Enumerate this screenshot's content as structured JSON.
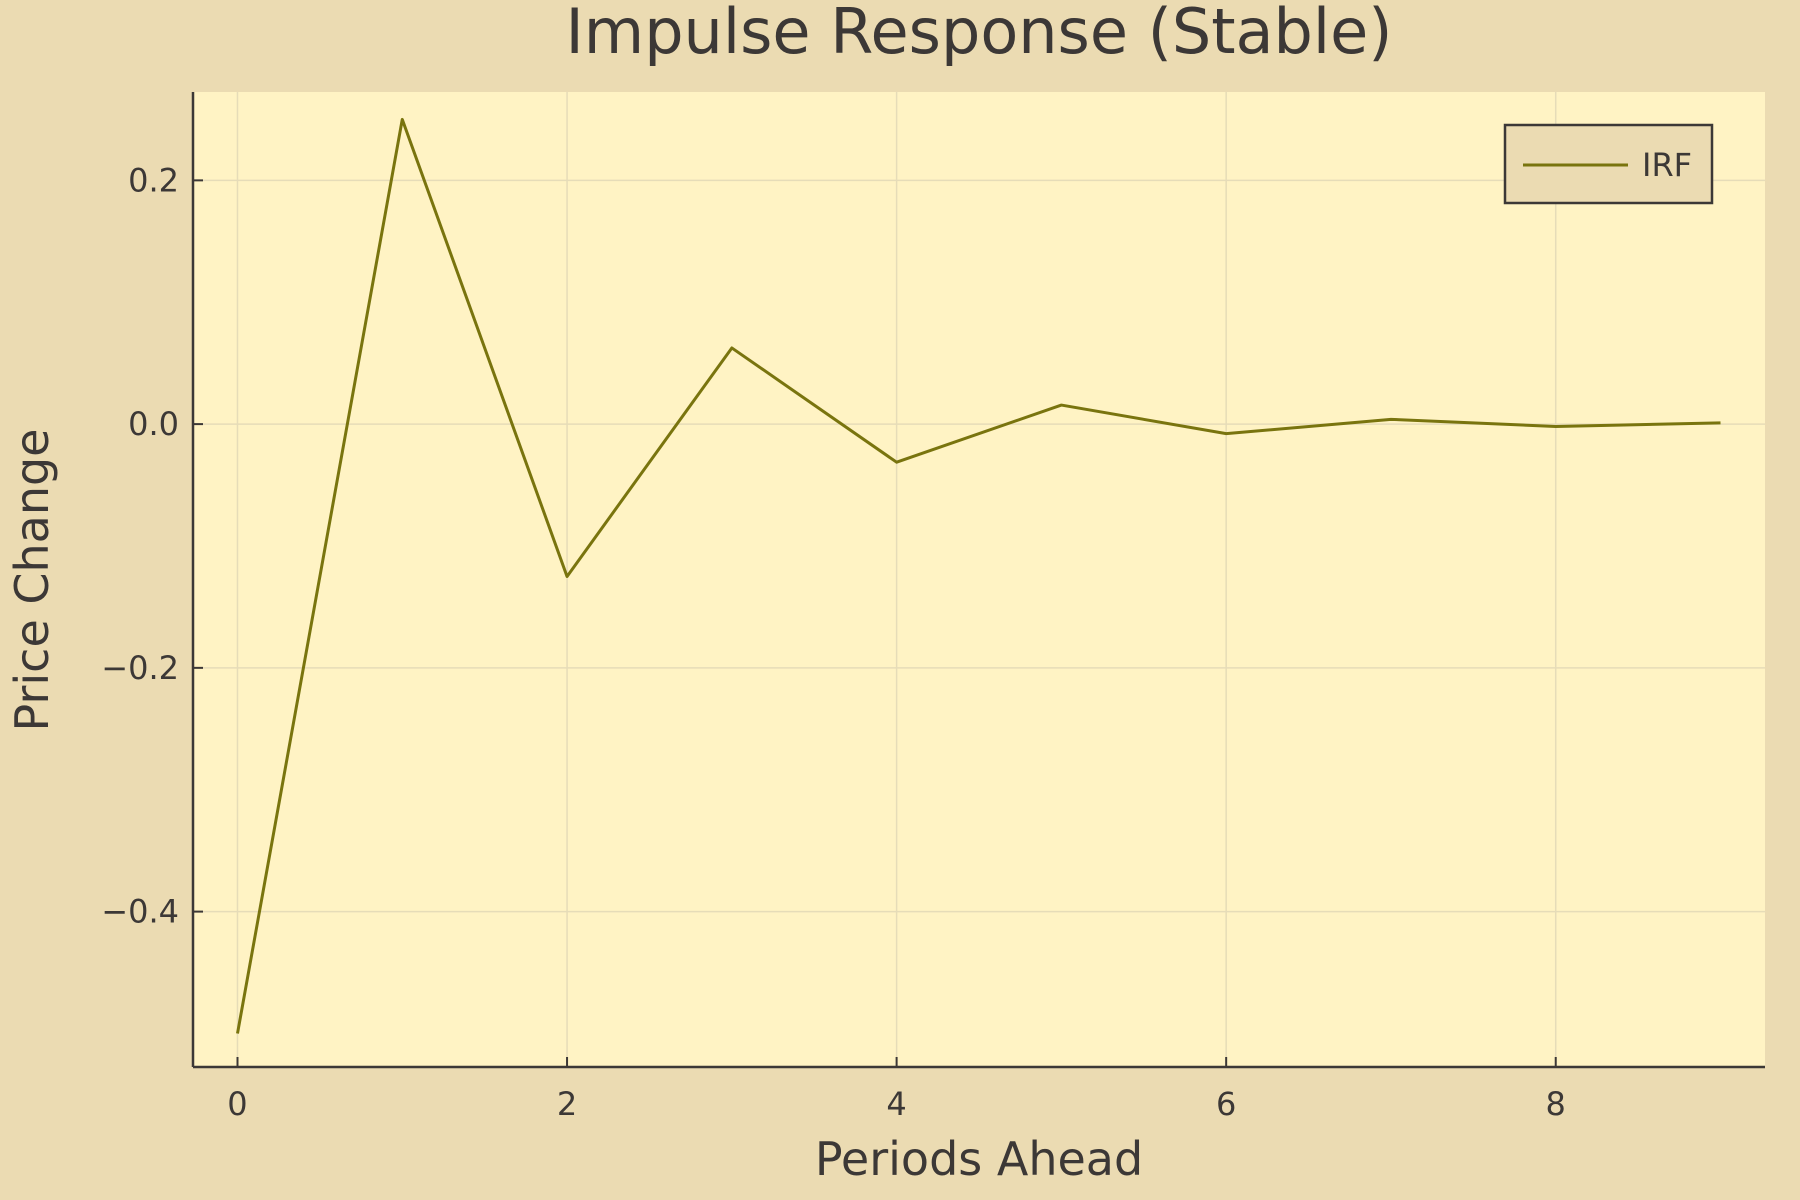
{
  "chart_data": {
    "type": "line",
    "title": "Impulse Response (Stable)",
    "xlabel": "Periods Ahead",
    "ylabel": "Price Change",
    "xlim": [
      -0.27,
      9.27
    ],
    "ylim": [
      -0.5275,
      0.2725
    ],
    "x_ticks": [
      0,
      2,
      4,
      6,
      8
    ],
    "x_tick_labels": [
      "0",
      "2",
      "4",
      "6",
      "8"
    ],
    "y_ticks": [
      -0.4,
      -0.2,
      0.0,
      0.2
    ],
    "y_tick_labels": [
      "−0.4",
      "−0.2",
      "0.0",
      "0.2"
    ],
    "grid": true,
    "legend_position": "top-right",
    "series": [
      {
        "name": "IRF",
        "color": "#79740e",
        "x": [
          0,
          1,
          2,
          3,
          4,
          5,
          6,
          7,
          8,
          9
        ],
        "y": [
          -0.5,
          0.25,
          -0.125,
          0.0625,
          -0.03125,
          0.015625,
          -0.0078125,
          0.00390625,
          -0.001953125,
          0.0009765625
        ]
      }
    ]
  },
  "colors": {
    "background": "#ebdbb2",
    "plot_background": "#fff3c4",
    "grid": "#e6dcb8",
    "axis": "#3c3836",
    "text": "#3c3836"
  }
}
